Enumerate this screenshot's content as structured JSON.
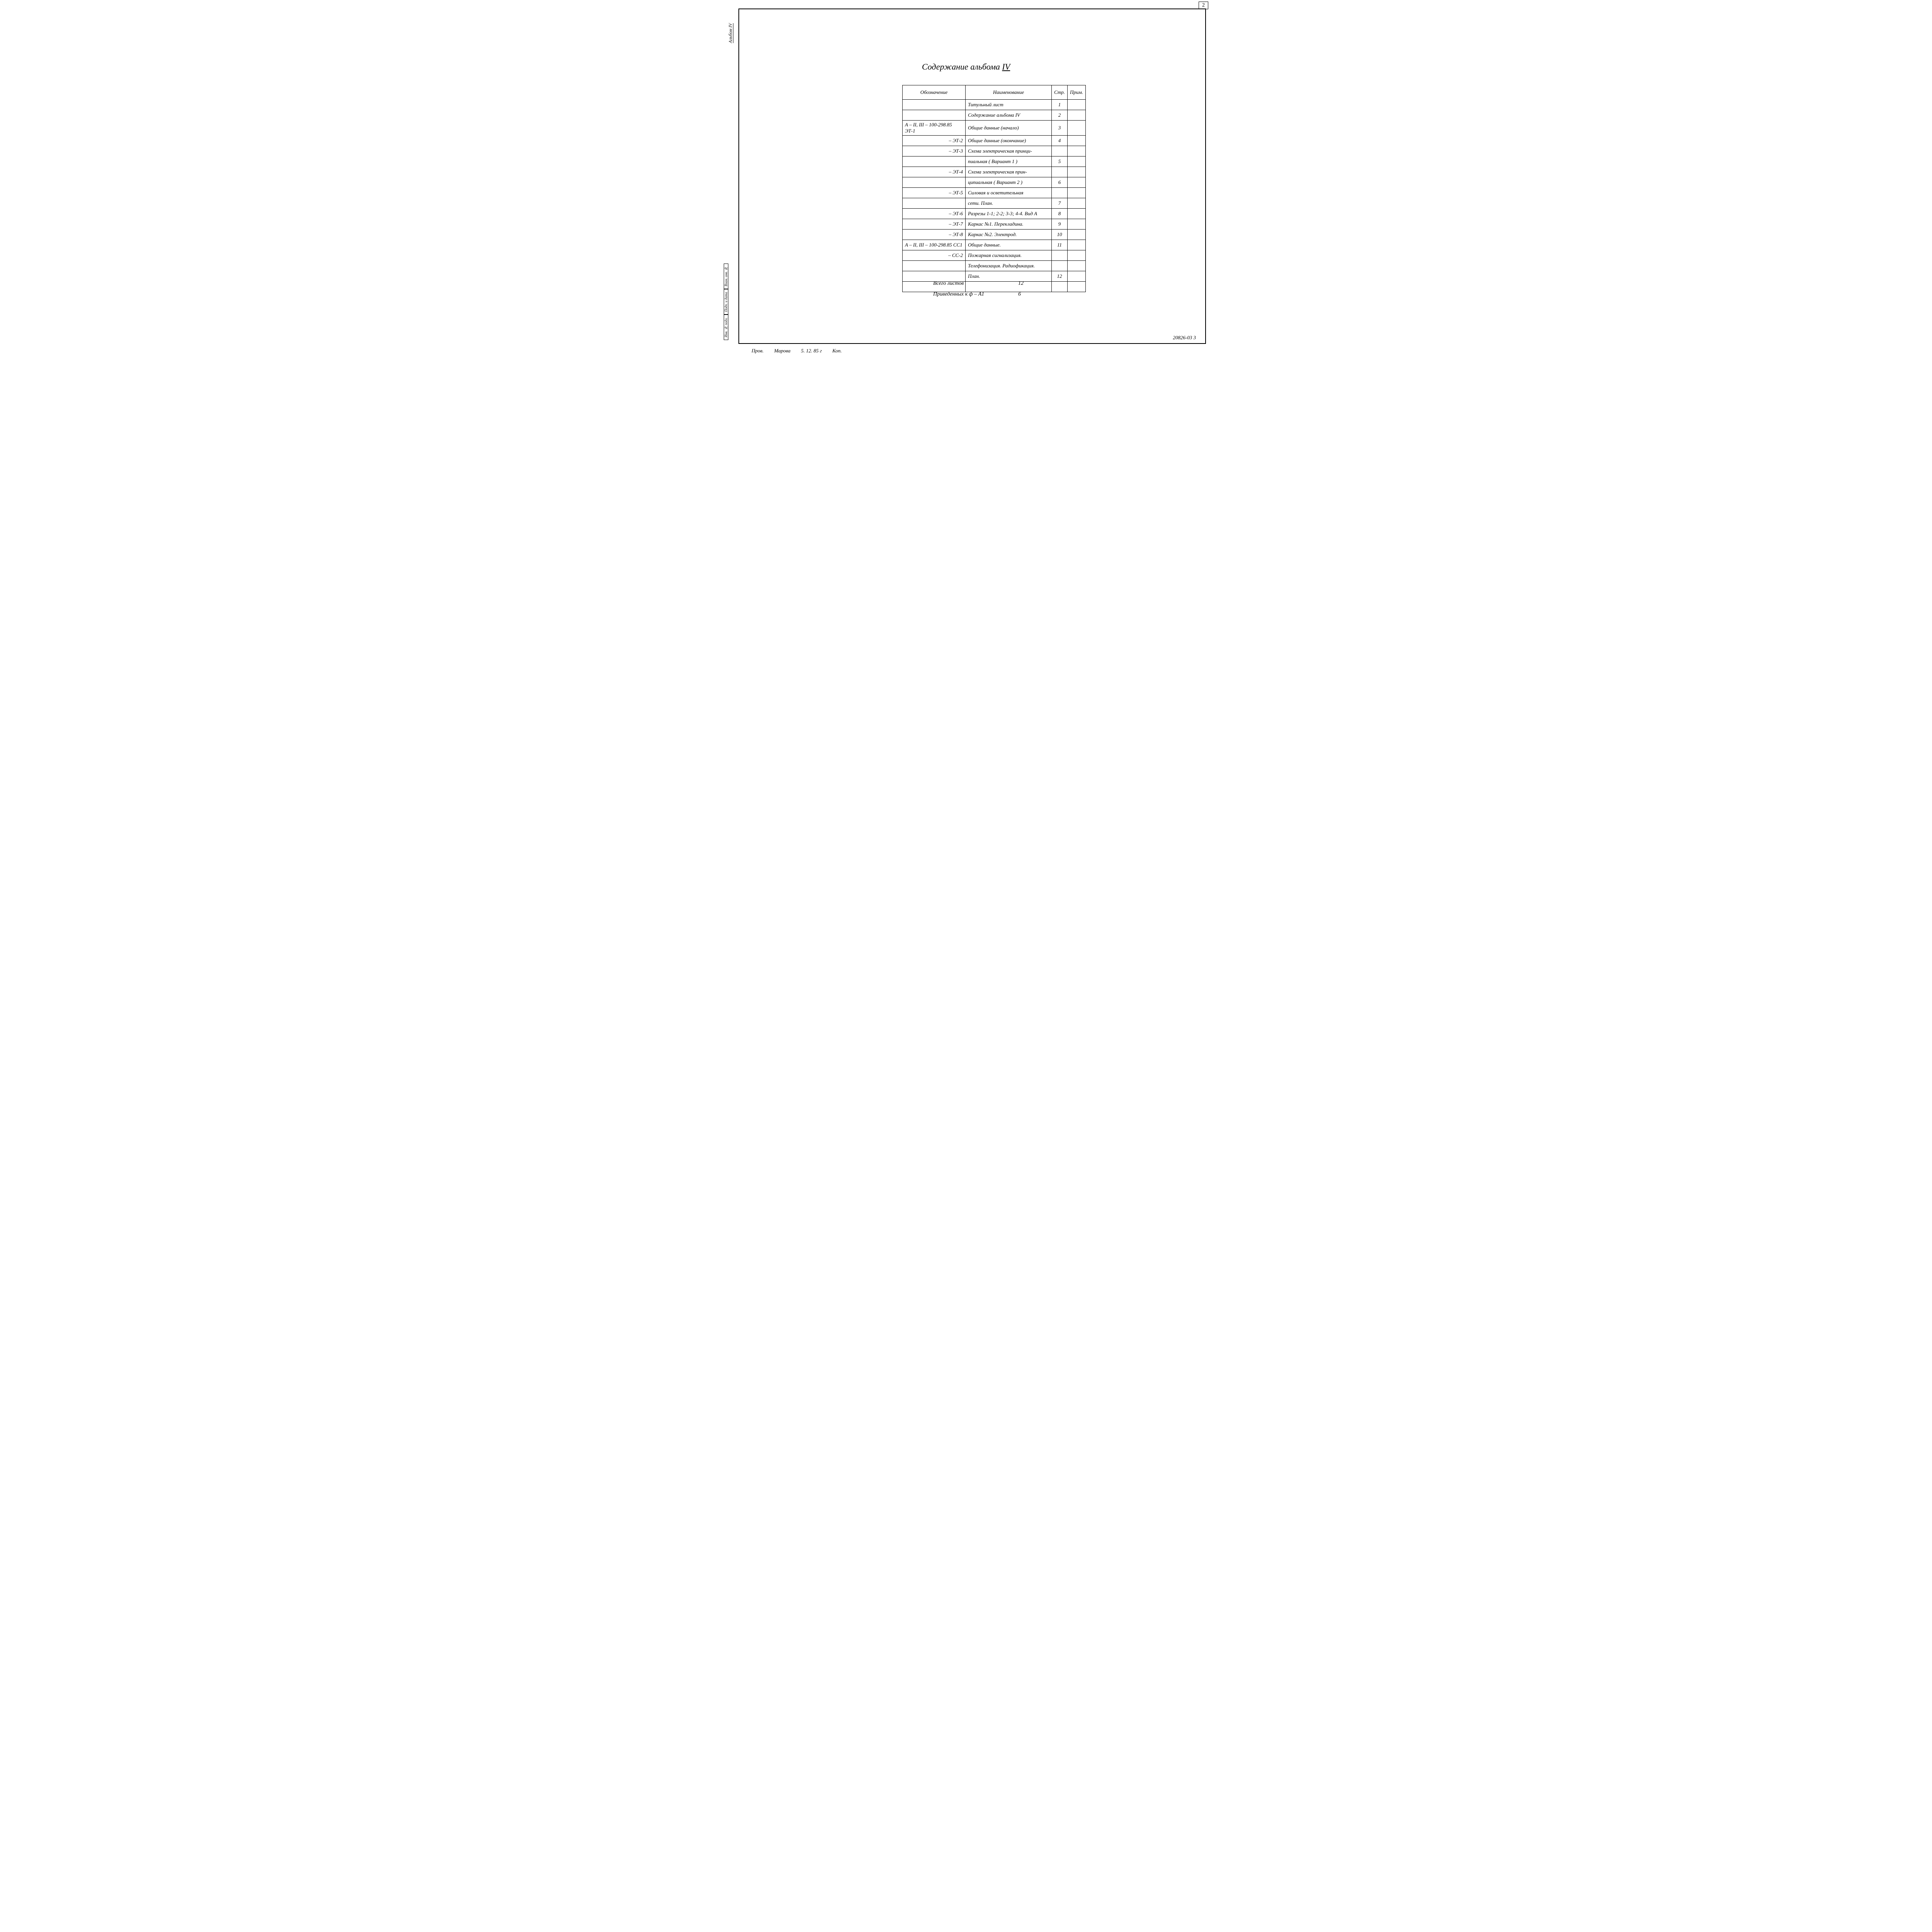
{
  "page_number_top": "2",
  "album_label": "Альбом IV",
  "title_prefix": "Содержание   альбома ",
  "title_roman": "IV",
  "side_cells": [
    "Взам. инв. №",
    "Подп. и дата",
    "Инв. № подл."
  ],
  "headers": {
    "oboz": "Обозначение",
    "naim": "Наименование",
    "str": "Стр.",
    "prim": "Прим."
  },
  "rows": [
    {
      "oboz": "",
      "naim": "Титульный лист",
      "str": "1",
      "prim": ""
    },
    {
      "oboz": "",
      "naim": "Содержание    альбома IV",
      "str": "2",
      "prim": ""
    },
    {
      "oboz": "А – II, III – 100-298.85 ЭТ-1",
      "naim": "Общие данные   (начало)",
      "str": "3",
      "prim": "",
      "left": true
    },
    {
      "oboz": "– ЭТ-2",
      "naim": "Общие данные   (окончание)",
      "str": "4",
      "prim": ""
    },
    {
      "oboz": "– ЭТ-3",
      "naim": "Схема электрическая принци-",
      "str": "",
      "prim": ""
    },
    {
      "oboz": "",
      "naim": "пиальная   ( Вариант 1 )",
      "str": "5",
      "prim": ""
    },
    {
      "oboz": "– ЭТ-4",
      "naim": "Схема электрическая   прин-",
      "str": "",
      "prim": ""
    },
    {
      "oboz": "",
      "naim": "ципиальная    ( Вариант 2 )",
      "str": "6",
      "prim": ""
    },
    {
      "oboz": "– ЭТ-5",
      "naim": "Силовая  и  осветительная",
      "str": "",
      "prim": ""
    },
    {
      "oboz": "",
      "naim": "сети.   План.",
      "str": "7",
      "prim": ""
    },
    {
      "oboz": "– ЭТ-6",
      "naim": "Разрезы 1-1; 2-2; 3-3; 4-4.  Вид А",
      "str": "8",
      "prim": ""
    },
    {
      "oboz": "– ЭТ-7",
      "naim": "Каркас  №1.  Перекладина.",
      "str": "9",
      "prim": ""
    },
    {
      "oboz": "– ЭТ-8",
      "naim": "Каркас  №2.  Электрод.",
      "str": "10",
      "prim": ""
    },
    {
      "oboz": "А – II, III – 100-298.85 СС1",
      "naim": "Общие   данные.",
      "str": "11",
      "prim": "",
      "left": true
    },
    {
      "oboz": "– СС-2",
      "naim": "Пожарная   сигнализация.",
      "str": "",
      "prim": ""
    },
    {
      "oboz": "",
      "naim": "Телефонизация. Радиофикация.",
      "str": "",
      "prim": ""
    },
    {
      "oboz": "",
      "naim": "План.",
      "str": "12",
      "prim": ""
    },
    {
      "oboz": "",
      "naim": "",
      "str": "",
      "prim": ""
    }
  ],
  "summary": {
    "line1_label": "Всего   листов",
    "line1_value": "12",
    "line2_label": "Приведенных   к ф – А1",
    "line2_value": "6"
  },
  "footer_left": {
    "role": "Пров.",
    "name": "Марова",
    "date": "5. 12.  85 г",
    "kop": "Коп."
  },
  "footer_right": "20826-03    3"
}
